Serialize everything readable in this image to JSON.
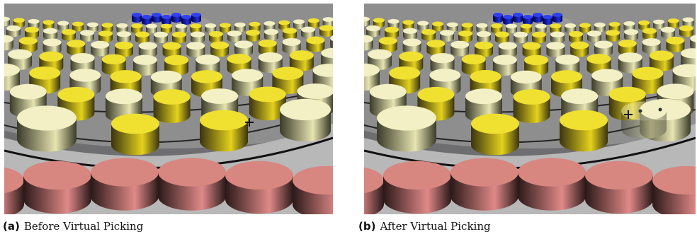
{
  "figure": {
    "panels": [
      {
        "label": "(a)",
        "caption": "Before Virtual Picking"
      },
      {
        "label": "(b)",
        "caption": "After Virtual Picking"
      }
    ]
  }
}
